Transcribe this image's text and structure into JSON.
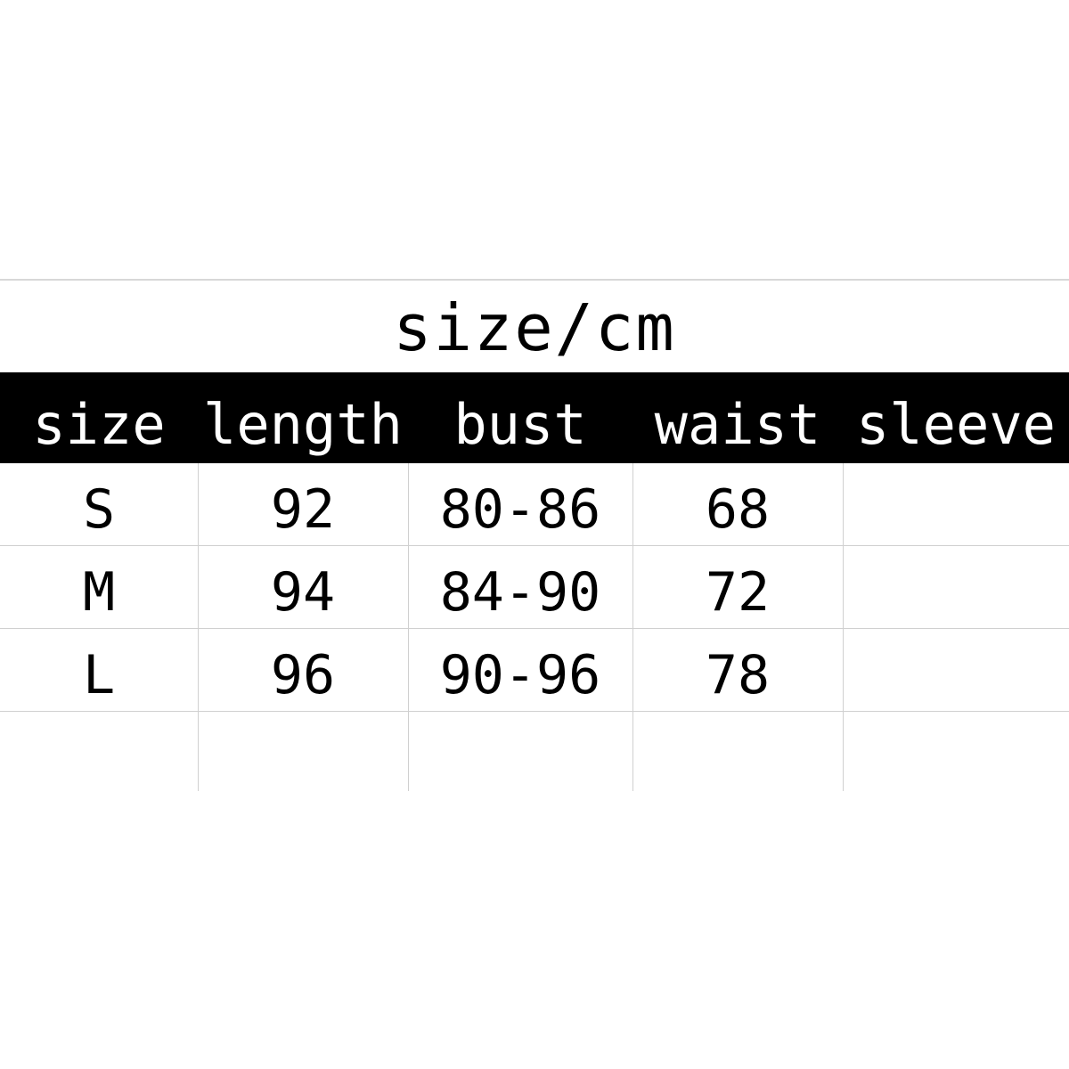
{
  "title": "size/cm",
  "headers": [
    "size",
    "length",
    "bust",
    "waist",
    "sleeve"
  ],
  "rows": [
    [
      "S",
      "92",
      "80-86",
      "68",
      ""
    ],
    [
      "M",
      "94",
      "84-90",
      "72",
      ""
    ],
    [
      "L",
      "96",
      "90-96",
      "78",
      ""
    ]
  ]
}
